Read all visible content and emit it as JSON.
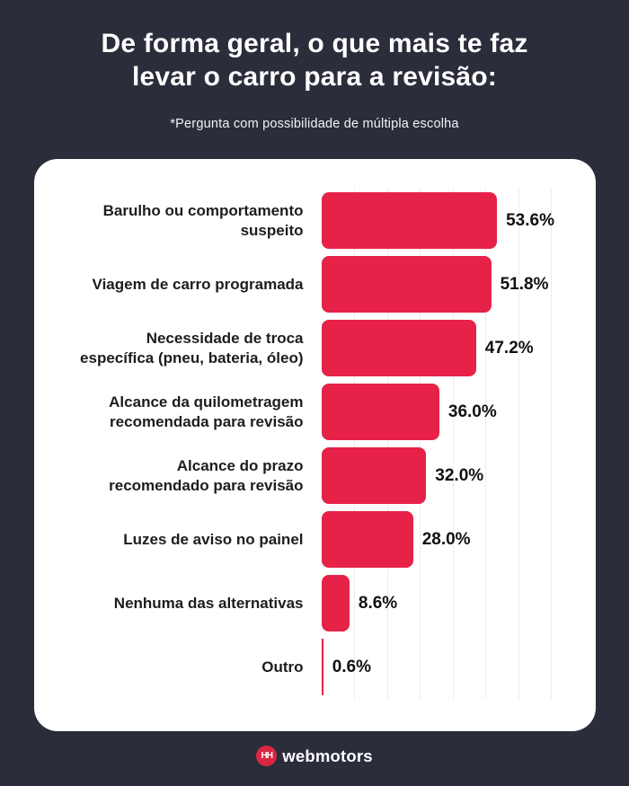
{
  "page": {
    "title_line1": "De forma geral, o que mais te faz",
    "title_line2": "levar o carro para a revisão:",
    "subtitle": "*Pergunta com possibilidade de múltipla escolha"
  },
  "footer": {
    "logo_icon": "webmotors-hh-badge",
    "logo_glyph": "HH",
    "brand": "webmotors"
  },
  "colors": {
    "background": "#2B2D3B",
    "bar": "#E62248",
    "card": "#FFFFFF",
    "gridline": "#ECECEC",
    "label_text": "#1D1D1D",
    "value_text": "#111111",
    "title_text": "#FFFFFF",
    "logo_red": "#DC2742"
  },
  "chart_data": {
    "type": "bar",
    "orientation": "horizontal",
    "title": "De forma geral, o que mais te faz levar o carro para a revisão:",
    "subtitle": "*Pergunta com possibilidade de múltipla escolha",
    "unit": "%",
    "categories": [
      "Barulho ou comportamento suspeito",
      "Viagem de carro programada",
      "Necessidade de troca específica (pneu, bateria, óleo)",
      "Alcance da quilometragem recomendada para revisão",
      "Alcance do prazo recomendado para revisão",
      "Luzes de aviso no painel",
      "Nenhuma das alternativas",
      "Outro"
    ],
    "category_lines": [
      [
        "Barulho ou comportamento",
        "suspeito"
      ],
      [
        "Viagem de carro programada"
      ],
      [
        "Necessidade de troca",
        "específica (pneu, bateria, óleo)"
      ],
      [
        "Alcance da quilometragem",
        "recomendada para revisão"
      ],
      [
        "Alcance do prazo",
        "recomendado para revisão"
      ],
      [
        "Luzes de aviso no painel"
      ],
      [
        "Nenhuma das alternativas"
      ],
      [
        "Outro"
      ]
    ],
    "values": [
      53.6,
      51.8,
      47.2,
      36.0,
      32.0,
      28.0,
      8.6,
      0.6
    ],
    "value_labels": [
      "53.6%",
      "51.8%",
      "47.2%",
      "36.0%",
      "32.0%",
      "28.0%",
      "8.6%",
      "0.6%"
    ],
    "xlim": [
      0,
      83.5
    ],
    "gridlines_percent": [
      10,
      20,
      30,
      40,
      50,
      60,
      70
    ],
    "grid": "vertical-light",
    "legend": "none",
    "bar_color": "#E62248"
  }
}
